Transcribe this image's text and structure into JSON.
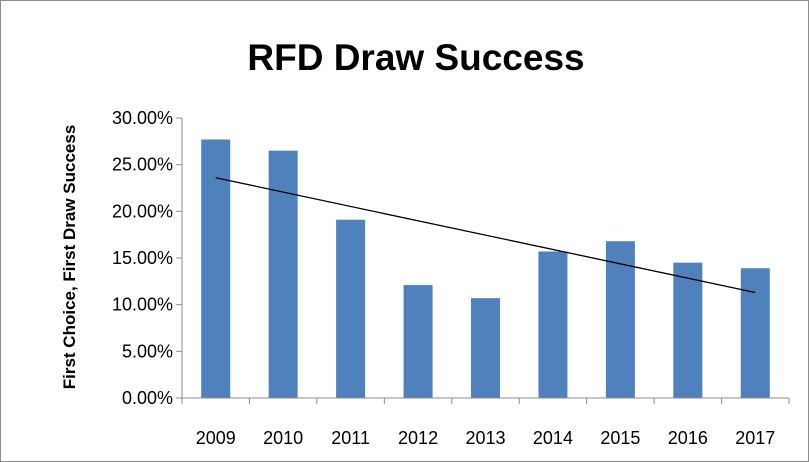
{
  "chart_data": {
    "type": "bar",
    "title": "RFD Draw Success",
    "xlabel": "",
    "ylabel": "First Choice, First Draw Success",
    "categories": [
      "2009",
      "2010",
      "2011",
      "2012",
      "2013",
      "2014",
      "2015",
      "2016",
      "2017"
    ],
    "series": [
      {
        "values": [
          27.7,
          26.5,
          19.1,
          12.1,
          10.7,
          15.7,
          16.8,
          14.5,
          13.9
        ]
      }
    ],
    "trendline": {
      "type": "linear",
      "start": 23.6,
      "end": 11.3
    },
    "ylim": [
      0,
      30
    ],
    "yticks": [
      "0.00%",
      "5.00%",
      "10.00%",
      "15.00%",
      "20.00%",
      "25.00%",
      "30.00%"
    ],
    "grid": false,
    "legend": "none",
    "colors": {
      "bar": "#4f81bd",
      "trendline": "#000000",
      "axis": "#8c8c8c"
    }
  }
}
